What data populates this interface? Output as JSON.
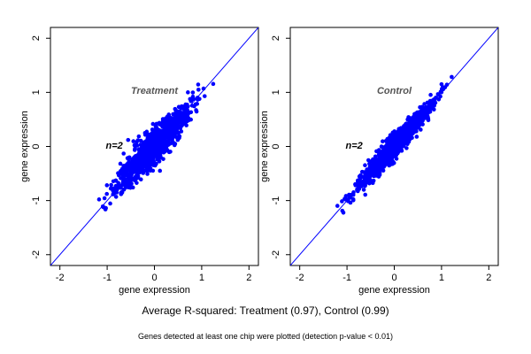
{
  "chart_data": [
    {
      "type": "scatter",
      "panel_title": "Treatment",
      "n_label": "n=2",
      "xlabel": "gene expression",
      "ylabel": "gene expression",
      "xlim": [
        -2.2,
        2.2
      ],
      "ylim": [
        -2.2,
        2.2
      ],
      "ticks": [
        -2,
        -1,
        0,
        1,
        2
      ],
      "identity_line": true,
      "point_color": "#0000ff",
      "spread_sd": 0.11,
      "r_squared": 0.97,
      "approx_range": [
        -1.1,
        1.25
      ]
    },
    {
      "type": "scatter",
      "panel_title": "Control",
      "n_label": "n=2",
      "xlabel": "gene expression",
      "ylabel": "gene expression",
      "xlim": [
        -2.2,
        2.2
      ],
      "ylim": [
        -2.2,
        2.2
      ],
      "ticks": [
        -2,
        -1,
        0,
        1,
        2
      ],
      "identity_line": true,
      "point_color": "#0000ff",
      "spread_sd": 0.07,
      "r_squared": 0.99,
      "approx_range": [
        -1.15,
        1.25
      ]
    }
  ],
  "caption": "Average R-squared: Treatment (0.97), Control (0.99)",
  "footnote": "Genes detected at least one chip were plotted (detection p-value < 0.01)"
}
